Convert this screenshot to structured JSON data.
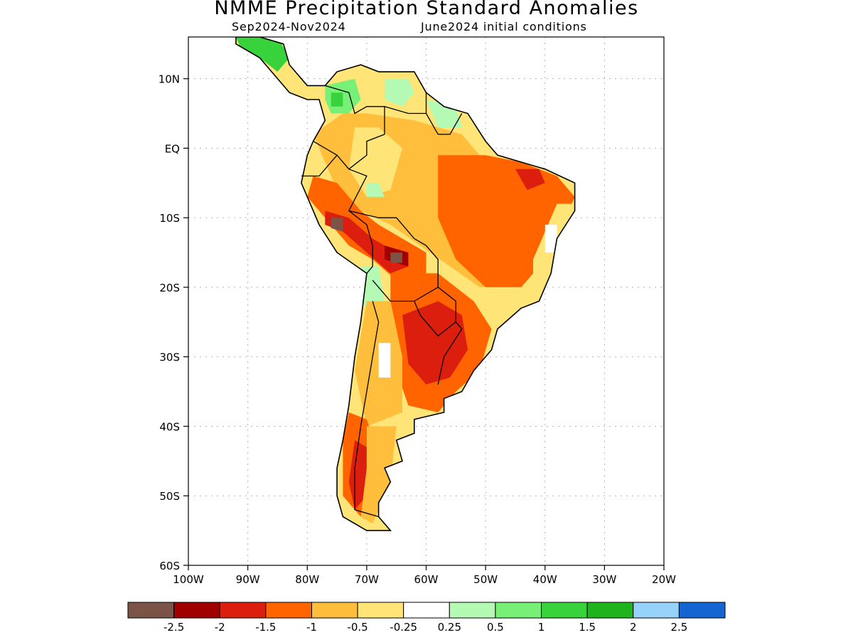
{
  "title": "NMME Precipitation Standard Anomalies",
  "subtitle_left": "Sep2024-Nov2024",
  "subtitle_right": "June2024 initial conditions",
  "lat_ticks": [
    {
      "lat": 10,
      "label": "10N"
    },
    {
      "lat": 0,
      "label": "EQ"
    },
    {
      "lat": -10,
      "label": "10S"
    },
    {
      "lat": -20,
      "label": "20S"
    },
    {
      "lat": -30,
      "label": "30S"
    },
    {
      "lat": -40,
      "label": "40S"
    },
    {
      "lat": -50,
      "label": "50S"
    },
    {
      "lat": -60,
      "label": "60S"
    }
  ],
  "lon_ticks": [
    {
      "lon": -100,
      "label": "100W"
    },
    {
      "lon": -90,
      "label": "90W"
    },
    {
      "lon": -80,
      "label": "80W"
    },
    {
      "lon": -70,
      "label": "70W"
    },
    {
      "lon": -60,
      "label": "60W"
    },
    {
      "lon": -50,
      "label": "50W"
    },
    {
      "lon": -40,
      "label": "40W"
    },
    {
      "lon": -30,
      "label": "30W"
    },
    {
      "lon": -20,
      "label": "20W"
    }
  ],
  "extent": {
    "lon_min": -100,
    "lon_max": -20,
    "lat_min": -60,
    "lat_max": 16
  },
  "colorbar": {
    "colors": [
      "#7b5447",
      "#a00000",
      "#dc1e0f",
      "#ff6400",
      "#ffbe3c",
      "#ffe478",
      "#ffffff",
      "#b4fab4",
      "#78f078",
      "#37d23c",
      "#1eb41e",
      "#96d2fa",
      "#1464d2"
    ],
    "labels": [
      "-2.5",
      "-2",
      "-1.5",
      "-1",
      "-0.5",
      "-0.25",
      "0.25",
      "0.5",
      "1",
      "1.5",
      "2",
      "2.5"
    ]
  },
  "regions": [
    {
      "name": "central-america-wet",
      "color": "#37d23c",
      "points": [
        [
          -92,
          16
        ],
        [
          -85,
          16
        ],
        [
          -83,
          13
        ],
        [
          -85,
          11
        ],
        [
          -88,
          13
        ],
        [
          -91,
          14
        ]
      ]
    },
    {
      "name": "colombia-wet",
      "color": "#78f078",
      "points": [
        [
          -77,
          9
        ],
        [
          -72,
          10
        ],
        [
          -71,
          7
        ],
        [
          -73,
          5
        ],
        [
          -76,
          5
        ],
        [
          -77,
          7
        ]
      ]
    },
    {
      "name": "colombia-wet-core",
      "color": "#37d23c",
      "points": [
        [
          -76,
          8
        ],
        [
          -74,
          8
        ],
        [
          -74,
          6
        ],
        [
          -76,
          6
        ]
      ]
    },
    {
      "name": "venezuela-wet",
      "color": "#b4fab4",
      "points": [
        [
          -67,
          10
        ],
        [
          -63,
          10
        ],
        [
          -62,
          8
        ],
        [
          -64,
          6
        ],
        [
          -67,
          7
        ]
      ]
    },
    {
      "name": "guyana-wet",
      "color": "#b4fab4",
      "points": [
        [
          -60,
          7
        ],
        [
          -55,
          6
        ],
        [
          -54,
          3
        ],
        [
          -58,
          3
        ]
      ]
    },
    {
      "name": "amazon-dry",
      "color": "#ffbe3c",
      "points": [
        [
          -79,
          2
        ],
        [
          -74,
          5
        ],
        [
          -70,
          5
        ],
        [
          -62,
          4
        ],
        [
          -54,
          2
        ],
        [
          -50,
          -2
        ],
        [
          -47,
          -6
        ],
        [
          -46,
          -14
        ],
        [
          -45,
          -20
        ],
        [
          -51,
          -20
        ],
        [
          -56,
          -17
        ],
        [
          -61,
          -14
        ],
        [
          -66,
          -11
        ],
        [
          -71,
          -9
        ],
        [
          -75,
          -6
        ]
      ]
    },
    {
      "name": "amazon-near-normal",
      "color": "#ffe478",
      "points": [
        [
          -72,
          3
        ],
        [
          -68,
          3
        ],
        [
          -64,
          0
        ],
        [
          -66,
          -6
        ],
        [
          -70,
          -7
        ],
        [
          -73,
          -3
        ]
      ]
    },
    {
      "name": "amazon-wet-patch",
      "color": "#b4fab4",
      "points": [
        [
          -70,
          -5
        ],
        [
          -68,
          -5
        ],
        [
          -67,
          -7
        ],
        [
          -70,
          -7
        ]
      ]
    },
    {
      "name": "brazil-east-dry",
      "color": "#ff6400",
      "points": [
        [
          -58,
          -1
        ],
        [
          -50,
          -1
        ],
        [
          -44,
          -2
        ],
        [
          -38,
          -4
        ],
        [
          -35,
          -7
        ],
        [
          -37,
          -11
        ],
        [
          -40,
          -16
        ],
        [
          -44,
          -20
        ],
        [
          -50,
          -20
        ],
        [
          -55,
          -16
        ],
        [
          -58,
          -10
        ]
      ]
    },
    {
      "name": "brazil-ne-strong",
      "color": "#dc1e0f",
      "points": [
        [
          -45,
          -3
        ],
        [
          -41,
          -3
        ],
        [
          -40,
          -5
        ],
        [
          -43,
          -6
        ]
      ]
    },
    {
      "name": "brazil-coast-normal",
      "color": "#ffe478",
      "points": [
        [
          -38,
          -8
        ],
        [
          -35,
          -8
        ],
        [
          -36,
          -16
        ],
        [
          -39,
          -21
        ],
        [
          -42,
          -22
        ],
        [
          -42,
          -16
        ]
      ]
    },
    {
      "name": "brazil-coast-white",
      "color": "#ffffff",
      "points": [
        [
          -40,
          -11
        ],
        [
          -38,
          -11
        ],
        [
          -38,
          -15
        ],
        [
          -40,
          -15
        ]
      ]
    },
    {
      "name": "peru-dry",
      "color": "#ff6400",
      "points": [
        [
          -79,
          -4
        ],
        [
          -75,
          -5
        ],
        [
          -71,
          -9
        ],
        [
          -68,
          -11
        ],
        [
          -64,
          -13
        ],
        [
          -60,
          -15
        ],
        [
          -60,
          -19
        ],
        [
          -65,
          -19
        ],
        [
          -69,
          -16
        ],
        [
          -73,
          -14
        ],
        [
          -77,
          -10
        ],
        [
          -80,
          -7
        ]
      ]
    },
    {
      "name": "peru-strong",
      "color": "#dc1e0f",
      "points": [
        [
          -77,
          -9
        ],
        [
          -73,
          -10
        ],
        [
          -69,
          -13
        ],
        [
          -65,
          -15
        ],
        [
          -63,
          -17
        ],
        [
          -66,
          -18
        ],
        [
          -70,
          -15
        ],
        [
          -74,
          -12
        ],
        [
          -77,
          -11
        ]
      ]
    },
    {
      "name": "peru-extreme",
      "color": "#a00000",
      "points": [
        [
          -67,
          -14
        ],
        [
          -63,
          -15
        ],
        [
          -63,
          -17
        ],
        [
          -67,
          -16
        ]
      ]
    },
    {
      "name": "peru-max-1",
      "color": "#7b5447",
      "points": [
        [
          -76,
          -10
        ],
        [
          -74,
          -10
        ],
        [
          -74,
          -12
        ],
        [
          -76,
          -11.5
        ]
      ]
    },
    {
      "name": "peru-max-2",
      "color": "#7b5447",
      "points": [
        [
          -66,
          -15
        ],
        [
          -64,
          -15
        ],
        [
          -64,
          -16.5
        ],
        [
          -66,
          -16.5
        ]
      ]
    },
    {
      "name": "andes-wet",
      "color": "#b4fab4",
      "points": [
        [
          -71,
          -17
        ],
        [
          -68,
          -17
        ],
        [
          -67,
          -22
        ],
        [
          -69,
          -24
        ],
        [
          -71,
          -22
        ]
      ]
    },
    {
      "name": "paraguay-dry",
      "color": "#ff6400",
      "points": [
        [
          -66,
          -18
        ],
        [
          -58,
          -18
        ],
        [
          -52,
          -22
        ],
        [
          -49,
          -26
        ],
        [
          -51,
          -32
        ],
        [
          -55,
          -35
        ],
        [
          -58,
          -38
        ],
        [
          -63,
          -37
        ],
        [
          -65,
          -32
        ],
        [
          -66,
          -25
        ]
      ]
    },
    {
      "name": "paraguay-strong",
      "color": "#dc1e0f",
      "points": [
        [
          -64,
          -24
        ],
        [
          -58,
          -22
        ],
        [
          -54,
          -24
        ],
        [
          -53,
          -29
        ],
        [
          -56,
          -33
        ],
        [
          -60,
          -34
        ],
        [
          -63,
          -31
        ]
      ]
    },
    {
      "name": "argentina-mixed",
      "color": "#ffbe3c",
      "points": [
        [
          -70,
          -22
        ],
        [
          -66,
          -22
        ],
        [
          -64,
          -30
        ],
        [
          -64,
          -38
        ],
        [
          -70,
          -40
        ],
        [
          -72,
          -32
        ]
      ]
    },
    {
      "name": "argentina-white",
      "color": "#ffffff",
      "points": [
        [
          -68,
          -28
        ],
        [
          -66,
          -28
        ],
        [
          -66,
          -33
        ],
        [
          -68,
          -33
        ]
      ]
    },
    {
      "name": "patagonia-dry",
      "color": "#ff6400",
      "points": [
        [
          -73,
          -38
        ],
        [
          -70,
          -39
        ],
        [
          -68,
          -44
        ],
        [
          -69,
          -50
        ],
        [
          -71,
          -53
        ],
        [
          -74,
          -50
        ],
        [
          -74,
          -42
        ]
      ]
    },
    {
      "name": "patagonia-strong",
      "color": "#dc1e0f",
      "points": [
        [
          -72,
          -42
        ],
        [
          -70,
          -43
        ],
        [
          -70,
          -50
        ],
        [
          -72,
          -52
        ],
        [
          -73,
          -48
        ]
      ]
    },
    {
      "name": "patagonia-east",
      "color": "#ffbe3c",
      "points": [
        [
          -70,
          -40
        ],
        [
          -65,
          -40
        ],
        [
          -66,
          -48
        ],
        [
          -69,
          -54
        ],
        [
          -71,
          -53
        ],
        [
          -70,
          -46
        ]
      ]
    }
  ],
  "continent": [
    [
      -92,
      16
    ],
    [
      -88,
      16
    ],
    [
      -84,
      15
    ],
    [
      -83,
      12
    ],
    [
      -80,
      9
    ],
    [
      -77,
      9
    ],
    [
      -75,
      11
    ],
    [
      -71,
      12
    ],
    [
      -68,
      11
    ],
    [
      -62,
      11
    ],
    [
      -60,
      8
    ],
    [
      -57,
      6
    ],
    [
      -53,
      5
    ],
    [
      -50,
      1
    ],
    [
      -48,
      -1
    ],
    [
      -44,
      -2
    ],
    [
      -40,
      -3
    ],
    [
      -35,
      -5
    ],
    [
      -35,
      -9
    ],
    [
      -38,
      -13
    ],
    [
      -39,
      -18
    ],
    [
      -41,
      -22
    ],
    [
      -44,
      -23
    ],
    [
      -48,
      -26
    ],
    [
      -49,
      -29
    ],
    [
      -52,
      -32
    ],
    [
      -54,
      -35
    ],
    [
      -57,
      -36
    ],
    [
      -57,
      -38
    ],
    [
      -62,
      -39
    ],
    [
      -62,
      -41
    ],
    [
      -65,
      -42
    ],
    [
      -64,
      -45
    ],
    [
      -67,
      -46
    ],
    [
      -66,
      -48
    ],
    [
      -68,
      -51
    ],
    [
      -68,
      -53
    ],
    [
      -66,
      -55
    ],
    [
      -70,
      -55
    ],
    [
      -74,
      -53
    ],
    [
      -75,
      -50
    ],
    [
      -75,
      -46
    ],
    [
      -74,
      -42
    ],
    [
      -73,
      -37
    ],
    [
      -72,
      -30
    ],
    [
      -71,
      -25
    ],
    [
      -70,
      -18
    ],
    [
      -75,
      -15
    ],
    [
      -78,
      -11
    ],
    [
      -81,
      -5
    ],
    [
      -80,
      -1
    ],
    [
      -79,
      1
    ],
    [
      -77,
      4
    ],
    [
      -78,
      7
    ],
    [
      -80,
      7
    ],
    [
      -83,
      8
    ],
    [
      -86,
      11
    ],
    [
      -88,
      13
    ],
    [
      -92,
      15
    ]
  ],
  "borders": [
    [
      [
        -77,
        9
      ],
      [
        -73,
        8
      ],
      [
        -72,
        5
      ],
      [
        -70,
        6
      ],
      [
        -67,
        6
      ],
      [
        -67,
        2
      ],
      [
        -70,
        1
      ],
      [
        -70,
        -1
      ],
      [
        -73,
        -3
      ],
      [
        -75,
        -1
      ],
      [
        -79,
        1
      ]
    ],
    [
      [
        -81,
        -4
      ],
      [
        -78,
        -4
      ],
      [
        -75,
        -1
      ]
    ],
    [
      [
        -73,
        -3
      ],
      [
        -70,
        -4
      ],
      [
        -73,
        -9
      ],
      [
        -70,
        -11
      ],
      [
        -69,
        -14
      ],
      [
        -69,
        -17
      ],
      [
        -70,
        -18
      ]
    ],
    [
      [
        -73,
        -9
      ],
      [
        -68,
        -10
      ],
      [
        -65,
        -10
      ],
      [
        -62,
        -13
      ],
      [
        -60,
        -14
      ],
      [
        -58,
        -16
      ],
      [
        -58,
        -20
      ],
      [
        -62,
        -22
      ],
      [
        -66,
        -22
      ],
      [
        -69,
        -19
      ]
    ],
    [
      [
        -67,
        6
      ],
      [
        -63,
        5
      ],
      [
        -60,
        5
      ],
      [
        -60,
        8
      ]
    ],
    [
      [
        -60,
        5
      ],
      [
        -58,
        2
      ],
      [
        -56,
        2
      ],
      [
        -54,
        5
      ]
    ],
    [
      [
        -58,
        -20
      ],
      [
        -55,
        -22
      ],
      [
        -55,
        -25
      ],
      [
        -58,
        -27
      ],
      [
        -61,
        -24
      ],
      [
        -62,
        -22
      ]
    ],
    [
      [
        -55,
        -25
      ],
      [
        -54,
        -26
      ],
      [
        -57,
        -30
      ],
      [
        -58,
        -34
      ]
    ],
    [
      [
        -69,
        -22
      ],
      [
        -68,
        -25
      ],
      [
        -69,
        -30
      ],
      [
        -70,
        -35
      ],
      [
        -71,
        -40
      ],
      [
        -72,
        -46
      ],
      [
        -72,
        -52
      ],
      [
        -68,
        -53
      ]
    ]
  ]
}
